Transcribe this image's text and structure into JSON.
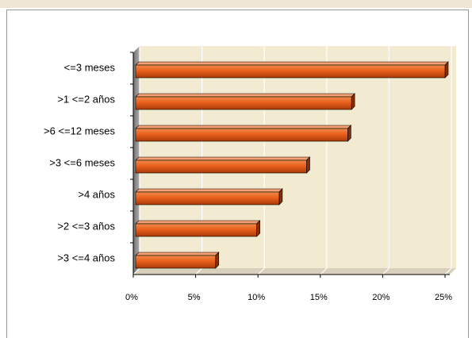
{
  "chart_data": {
    "type": "bar3d",
    "orientation": "horizontal",
    "categories": [
      "<=3 meses",
      ">1 <=2 años",
      ">6 <=12 meses",
      ">3 <=6 meses",
      ">4 años",
      ">2 <=3 años",
      ">3 <=4 años"
    ],
    "values": [
      25,
      17.5,
      17.2,
      13.9,
      11.7,
      9.9,
      6.6
    ],
    "color": "#e8601c",
    "xlim": [
      0,
      25
    ],
    "xticks": [
      {
        "value": 0,
        "label": "0%"
      },
      {
        "value": 5,
        "label": "5%"
      },
      {
        "value": 10,
        "label": "10%"
      },
      {
        "value": 15,
        "label": "15%"
      },
      {
        "value": 20,
        "label": "20%"
      },
      {
        "value": 25,
        "label": "25%"
      }
    ],
    "grid": true
  }
}
